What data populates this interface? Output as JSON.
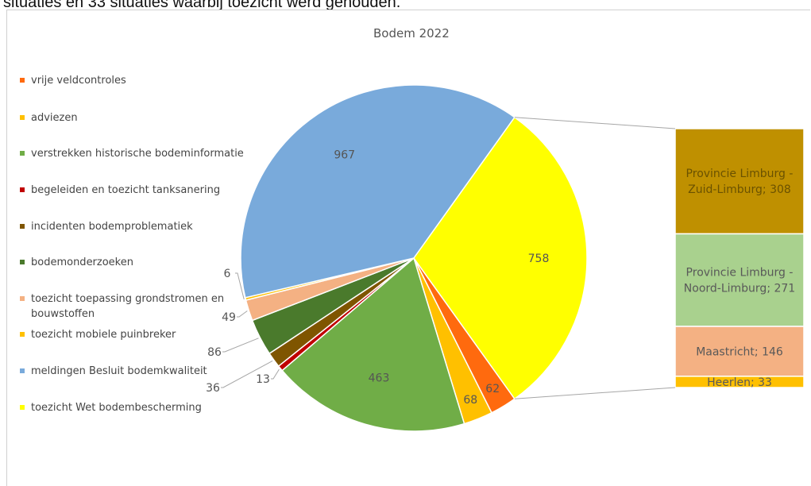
{
  "header_text": "situaties en 33 situaties waarbij toezicht werd gehouden.",
  "chart_data": {
    "type": "pie",
    "title": "Bodem 2022",
    "legend_position": "left",
    "slices": [
      {
        "name": "vrije veldcontroles",
        "value": 62,
        "color": "#ff6a0e"
      },
      {
        "name": "adviezen",
        "value": 68,
        "color": "#ffc000"
      },
      {
        "name": "verstrekken historische bodeminformatie",
        "value": 463,
        "color": "#70ad47"
      },
      {
        "name": "begeleiden en toezicht tanksanering",
        "value": 13,
        "color": "#c00000"
      },
      {
        "name": "incidenten bodemproblematiek",
        "value": 36,
        "color": "#7f5500"
      },
      {
        "name": "bodemonderzoeken",
        "value": 86,
        "color": "#4a7a2c"
      },
      {
        "name": "toezicht toepassing grondstromen en bouwstoffen",
        "value": 49,
        "color": "#f4b183"
      },
      {
        "name": "toezicht mobiele puinbreker",
        "value": 6,
        "color": "#ffc000"
      },
      {
        "name": "meldingen Besluit bodemkwaliteit",
        "value": 967,
        "color": "#79aadb"
      },
      {
        "name": "toezicht Wet bodembescherming",
        "value": 758,
        "color": "#ffff00"
      }
    ],
    "breakdown_of": "toezicht Wet bodembescherming",
    "breakdown": [
      {
        "name": "Provincie Limburg - Zuid-Limburg",
        "value": 308,
        "color": "#bf9000",
        "label": "Provincie Limburg - Zuid-Limburg; 308",
        "lines": [
          "Provincie Limburg -",
          "Zuid-Limburg; 308"
        ]
      },
      {
        "name": "Provincie Limburg - Noord-Limburg",
        "value": 271,
        "color": "#a9d18e",
        "label": "Provincie Limburg - Noord-Limburg; 271",
        "lines": [
          "Provincie Limburg -",
          "Noord-Limburg; 271"
        ]
      },
      {
        "name": "Maastricht",
        "value": 146,
        "color": "#f4b183",
        "label": "Maastricht; 146",
        "lines": [
          "Maastricht; 146"
        ]
      },
      {
        "name": "Heerlen",
        "value": 33,
        "color": "#ffc000",
        "label": "Heerlen; 33",
        "lines": [
          "Heerlen; 33"
        ]
      }
    ]
  }
}
